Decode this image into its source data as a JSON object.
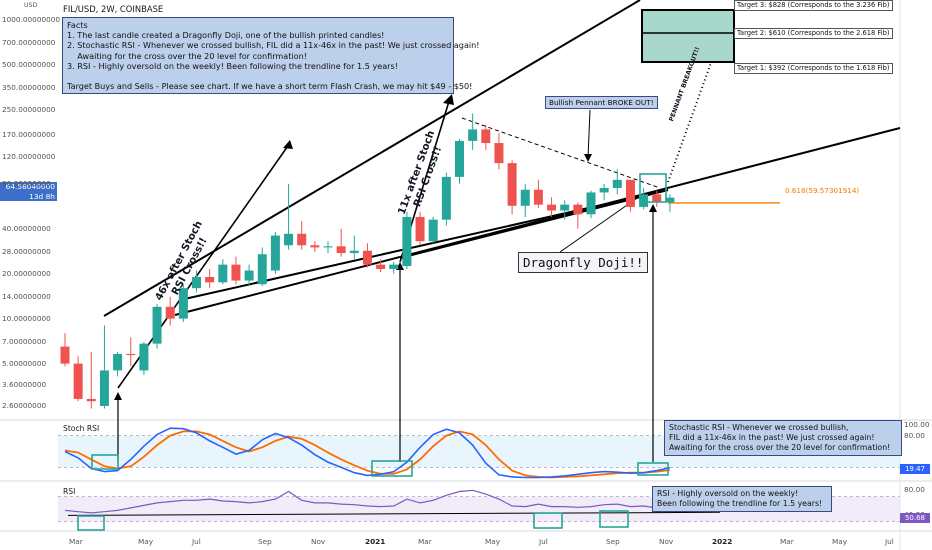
{
  "header": {
    "symbol": "FIL/USD, 2W, COINBASE",
    "currency": "USD",
    "last_price": "64.58040000",
    "countdown": "13d 8h",
    "last_price_color": "#3b6fc9"
  },
  "facts_note": {
    "lines": [
      "Facts",
      "1. The last candle created a Dragonfly Doji, one of the bullish printed candles!",
      "2. Stochastic RSI - Whenever we crossed bullish, FIL did a 11x-46x in the past! We just crossed again!",
      "    Awaiting for the cross over the 20 level for confirmation!",
      "3. RSI - Highly oversold on the weekly! Been following the trendline for 1.5 years!",
      "",
      "Target Buys and Sells - Please see chart. If we have a short term Flash Crash, we may hit $49 - $50!"
    ]
  },
  "stoch_note": {
    "lines": [
      "Stochastic RSI - Whenever we crossed bullish,",
      "FIL did a 11x-46x in the past! We just crossed again!",
      "Awaiting for the cross over the 20 level for confirmation!"
    ]
  },
  "rsi_note": {
    "lines": [
      "RSI - Highly oversold on the weekly!",
      "Been following the trendline for 1.5 years!"
    ]
  },
  "targets": {
    "t3": "Target 3: $828 (Corresponds to the 3.236 Fib)",
    "t2": "Target 2: $610  (Corresponds to the 2.618 Fib)",
    "t1": "Target 1: $392 (Corresponds to the 1.618 Fib)"
  },
  "annotations": {
    "pennant": "Bullish Pennant BROKE OUT!",
    "doji": "Dragonfly Doji!!",
    "fib": "0.618(59.57301914)",
    "pennant_breakout": "PENNANT BREAKOUT!!",
    "rally1": "46x after Stoch RSI Cross!!",
    "rally2": "11x after Stoch RSI Cross!!"
  },
  "colors": {
    "up": "#26a69a",
    "down": "#ef5350",
    "stoch_k": "#2962ff",
    "stoch_d": "#ff6d00",
    "rsi": "#7e57c2",
    "fib": "#f57c00",
    "note_bg": "#bcd0ec",
    "target_box": "#a8d8cc"
  },
  "chart_data": [
    {
      "type": "candlestick",
      "title": "FIL/USD, 2W, COINBASE",
      "ylabel": "USD",
      "y_scale": "log",
      "ylim": [
        2.3,
        1150
      ],
      "yticks": [
        "1000.00000000",
        "700.00000000",
        "500.00000000",
        "350.00000000",
        "250.00000000",
        "170.00000000",
        "120.00000000",
        "80.00000000",
        "40.00000000",
        "28.00000000",
        "20.00000000",
        "14.00000000",
        "10.00000000",
        "7.00000000",
        "5.00000000",
        "3.60000000",
        "2.60000000"
      ],
      "x_labels": [
        "Mar",
        "May",
        "Jul",
        "Sep",
        "Nov",
        "2021",
        "Mar",
        "May",
        "Jul",
        "Sep",
        "Nov",
        "2022",
        "Mar",
        "May",
        "Jul"
      ],
      "candles": [
        {
          "o": 6.5,
          "h": 8.0,
          "l": 4.8,
          "c": 5.0
        },
        {
          "o": 5.0,
          "h": 5.6,
          "l": 2.8,
          "c": 2.9
        },
        {
          "o": 2.9,
          "h": 6.0,
          "l": 2.5,
          "c": 2.8
        },
        {
          "o": 2.6,
          "h": 9.0,
          "l": 2.5,
          "c": 4.5
        },
        {
          "o": 4.5,
          "h": 6.0,
          "l": 4.1,
          "c": 5.8
        },
        {
          "o": 5.8,
          "h": 7.5,
          "l": 4.8,
          "c": 5.7
        },
        {
          "o": 4.5,
          "h": 7.0,
          "l": 4.2,
          "c": 6.8
        },
        {
          "o": 6.8,
          "h": 12.5,
          "l": 6.3,
          "c": 12.0
        },
        {
          "o": 12.0,
          "h": 14.0,
          "l": 9.0,
          "c": 10.0
        },
        {
          "o": 10.0,
          "h": 17.0,
          "l": 9.5,
          "c": 16.0
        },
        {
          "o": 16.0,
          "h": 21.0,
          "l": 15.0,
          "c": 19.0
        },
        {
          "o": 19.0,
          "h": 21.5,
          "l": 16.0,
          "c": 17.5
        },
        {
          "o": 17.5,
          "h": 25.0,
          "l": 17.0,
          "c": 23.0
        },
        {
          "o": 23.0,
          "h": 26.0,
          "l": 17.0,
          "c": 18.0
        },
        {
          "o": 18.0,
          "h": 23.0,
          "l": 16.5,
          "c": 21.0
        },
        {
          "o": 17.0,
          "h": 30.0,
          "l": 16.5,
          "c": 27.0
        },
        {
          "o": 21.0,
          "h": 38.0,
          "l": 20.0,
          "c": 36.0
        },
        {
          "o": 31.0,
          "h": 80.0,
          "l": 29.0,
          "c": 37.0
        },
        {
          "o": 37.0,
          "h": 45.0,
          "l": 29.0,
          "c": 31.0
        },
        {
          "o": 31.0,
          "h": 33.0,
          "l": 28.0,
          "c": 30.0
        },
        {
          "o": 30.0,
          "h": 33.0,
          "l": 27.5,
          "c": 30.5
        },
        {
          "o": 30.5,
          "h": 40.0,
          "l": 26.0,
          "c": 27.5
        },
        {
          "o": 27.5,
          "h": 36.0,
          "l": 25.0,
          "c": 28.5
        },
        {
          "o": 28.5,
          "h": 32.0,
          "l": 22.0,
          "c": 23.0
        },
        {
          "o": 23.0,
          "h": 25.0,
          "l": 20.5,
          "c": 21.5
        },
        {
          "o": 21.5,
          "h": 24.0,
          "l": 20.0,
          "c": 23.0
        },
        {
          "o": 22.5,
          "h": 52.0,
          "l": 21.5,
          "c": 48.0
        },
        {
          "o": 48.0,
          "h": 52.0,
          "l": 31.0,
          "c": 33.0
        },
        {
          "o": 33.0,
          "h": 48.0,
          "l": 32.0,
          "c": 46.0
        },
        {
          "o": 46.0,
          "h": 95.0,
          "l": 42.0,
          "c": 89.0
        },
        {
          "o": 89.0,
          "h": 160.0,
          "l": 80.0,
          "c": 155.0
        },
        {
          "o": 155.0,
          "h": 237.0,
          "l": 135.0,
          "c": 185.0
        },
        {
          "o": 185.0,
          "h": 200.0,
          "l": 135.0,
          "c": 150.0
        },
        {
          "o": 150.0,
          "h": 175.0,
          "l": 100.0,
          "c": 110.0
        },
        {
          "o": 110.0,
          "h": 115.0,
          "l": 50.0,
          "c": 57.0
        },
        {
          "o": 57.0,
          "h": 80.0,
          "l": 48.0,
          "c": 73.0
        },
        {
          "o": 73.0,
          "h": 85.0,
          "l": 55.0,
          "c": 58.0
        },
        {
          "o": 58.0,
          "h": 65.0,
          "l": 48.0,
          "c": 53.0
        },
        {
          "o": 53.0,
          "h": 62.0,
          "l": 46.0,
          "c": 58.0
        },
        {
          "o": 58.0,
          "h": 60.0,
          "l": 40.0,
          "c": 50.0
        },
        {
          "o": 50.0,
          "h": 72.0,
          "l": 47.0,
          "c": 70.0
        },
        {
          "o": 70.0,
          "h": 80.0,
          "l": 62.0,
          "c": 75.0
        },
        {
          "o": 75.0,
          "h": 100.0,
          "l": 68.0,
          "c": 85.0
        },
        {
          "o": 85.0,
          "h": 85.0,
          "l": 52.0,
          "c": 56.0
        },
        {
          "o": 56.0,
          "h": 75.0,
          "l": 54.0,
          "c": 68.0
        },
        {
          "o": 68.0,
          "h": 72.0,
          "l": 56.0,
          "c": 60.0
        },
        {
          "o": 60.0,
          "h": 68.0,
          "l": 52.0,
          "c": 64.6
        }
      ]
    },
    {
      "type": "line",
      "title": "Stoch RSI",
      "ylim": [
        0,
        100
      ],
      "yticks": [
        "100.00",
        "80.00",
        "20.00"
      ],
      "series": [
        {
          "name": "",
          "values": [
            50,
            38,
            18,
            12,
            14,
            35,
            60,
            82,
            94,
            93,
            85,
            70,
            58,
            45,
            52,
            72,
            84,
            76,
            62,
            44,
            30,
            20,
            10,
            5,
            7,
            12,
            30,
            58,
            82,
            92,
            85,
            62,
            28,
            6,
            2,
            1,
            1,
            2,
            4,
            7,
            10,
            12,
            11,
            9,
            10,
            14,
            19.47
          ]
        },
        {
          "name": "",
          "values": [
            52,
            48,
            35,
            22,
            18,
            22,
            40,
            62,
            80,
            88,
            88,
            82,
            70,
            58,
            50,
            58,
            70,
            78,
            74,
            62,
            48,
            35,
            24,
            14,
            8,
            8,
            16,
            35,
            60,
            80,
            88,
            82,
            62,
            35,
            14,
            5,
            2,
            1,
            2,
            3,
            5,
            7,
            9,
            10,
            10,
            12,
            15
          ]
        }
      ],
      "last_value": "19.47"
    },
    {
      "type": "line",
      "title": "RSI",
      "yticks": [
        "80.00",
        "40.00"
      ],
      "series": [
        {
          "name": "",
          "values": [
            48,
            46,
            44,
            46,
            48,
            52,
            56,
            60,
            62,
            64,
            64,
            66,
            63,
            62,
            60,
            62,
            66,
            78,
            64,
            60,
            60,
            58,
            57,
            55,
            54,
            55,
            66,
            60,
            64,
            72,
            78,
            80,
            74,
            66,
            55,
            54,
            58,
            54,
            54,
            53,
            54,
            57,
            58,
            54,
            55,
            52,
            50.68
          ]
        }
      ],
      "last_value": "50.68"
    }
  ]
}
